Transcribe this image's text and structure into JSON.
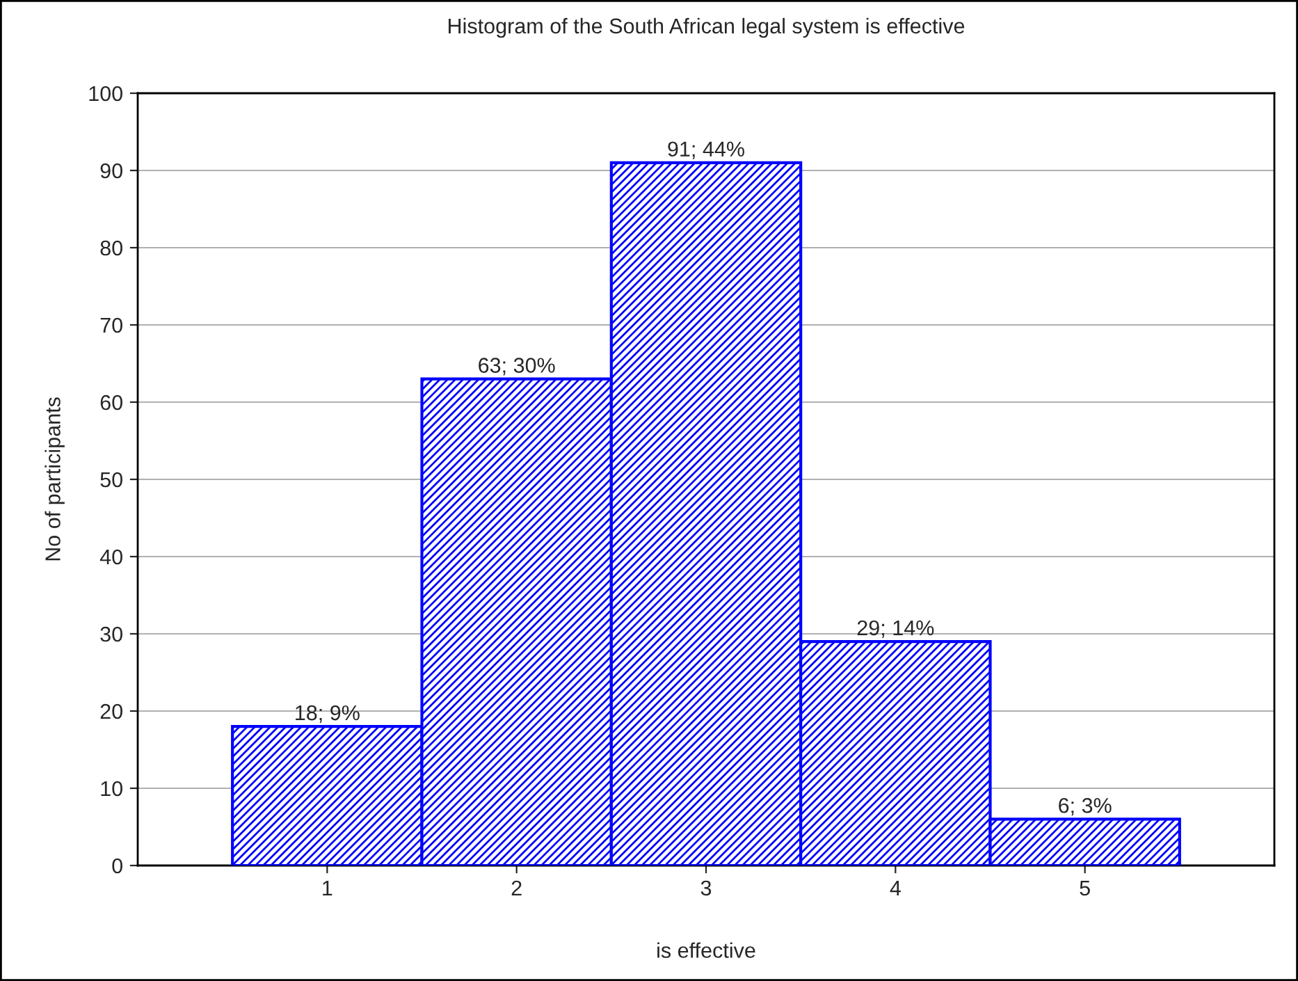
{
  "chart_data": {
    "type": "histogram",
    "title": "Histogram of the South African legal system is effective",
    "xlabel": "is effective",
    "ylabel": "No of participants",
    "bins": [
      0.5,
      1.5,
      2.5,
      3.5,
      4.5,
      5.5
    ],
    "values": [
      18,
      63,
      91,
      29,
      6
    ],
    "value_labels": [
      "18; 9%",
      "63; 30%",
      "91; 44%",
      "29; 14%",
      "6; 3%"
    ],
    "color": "#0000ff",
    "xlim": [
      0,
      6
    ],
    "xticks": [
      1,
      2,
      3,
      4,
      5
    ],
    "ylim": [
      0,
      100
    ],
    "yticks": [
      0,
      10,
      20,
      30,
      40,
      50,
      60,
      70,
      80,
      90,
      100
    ],
    "grid": "y"
  }
}
